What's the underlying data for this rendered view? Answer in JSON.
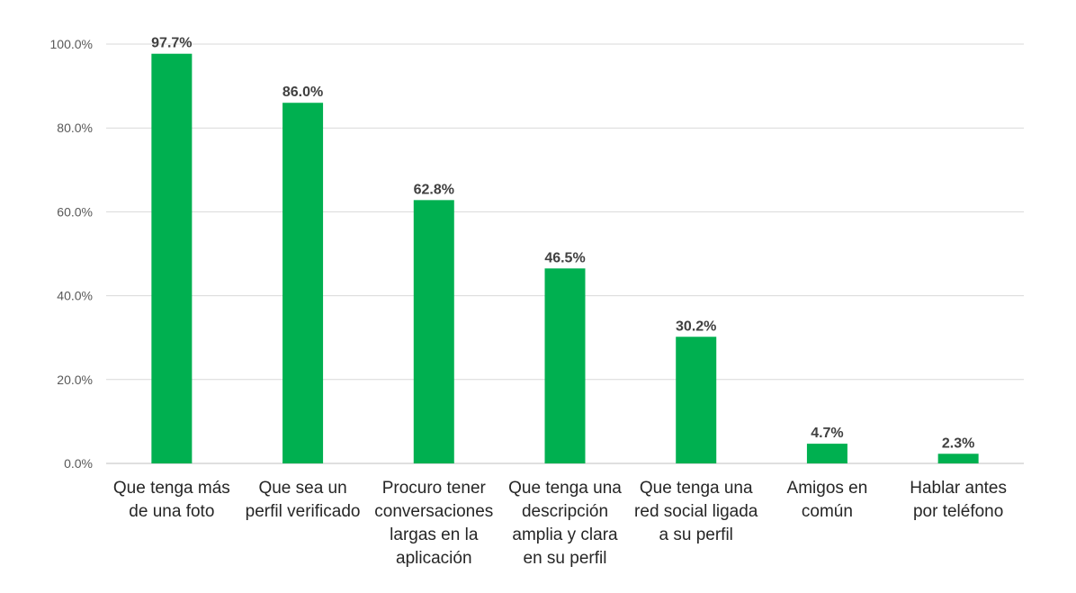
{
  "chart_data": {
    "type": "bar",
    "categories": [
      "Que tenga más\nde una foto",
      "Que sea un\nperfil verificado",
      "Procuro tener\nconversaciones\nlargas en la\naplicación",
      "Que tenga una\ndescripción\namplia y clara\nen su perfil",
      "Que tenga una\nred social ligada\na su perfil",
      "Amigos en\ncomún",
      "Hablar antes\npor teléfono"
    ],
    "values": [
      97.7,
      86.0,
      62.8,
      46.5,
      30.2,
      4.7,
      2.3
    ],
    "data_labels": [
      "97.7%",
      "86.0%",
      "62.8%",
      "46.5%",
      "30.2%",
      "4.7%",
      "2.3%"
    ],
    "yticks": [
      "0.0%",
      "20.0%",
      "40.0%",
      "60.0%",
      "80.0%",
      "100.0%"
    ],
    "ylim": [
      0,
      100
    ],
    "grid": true,
    "bar_color": "#00B050",
    "title": "",
    "xlabel": "",
    "ylabel": ""
  }
}
